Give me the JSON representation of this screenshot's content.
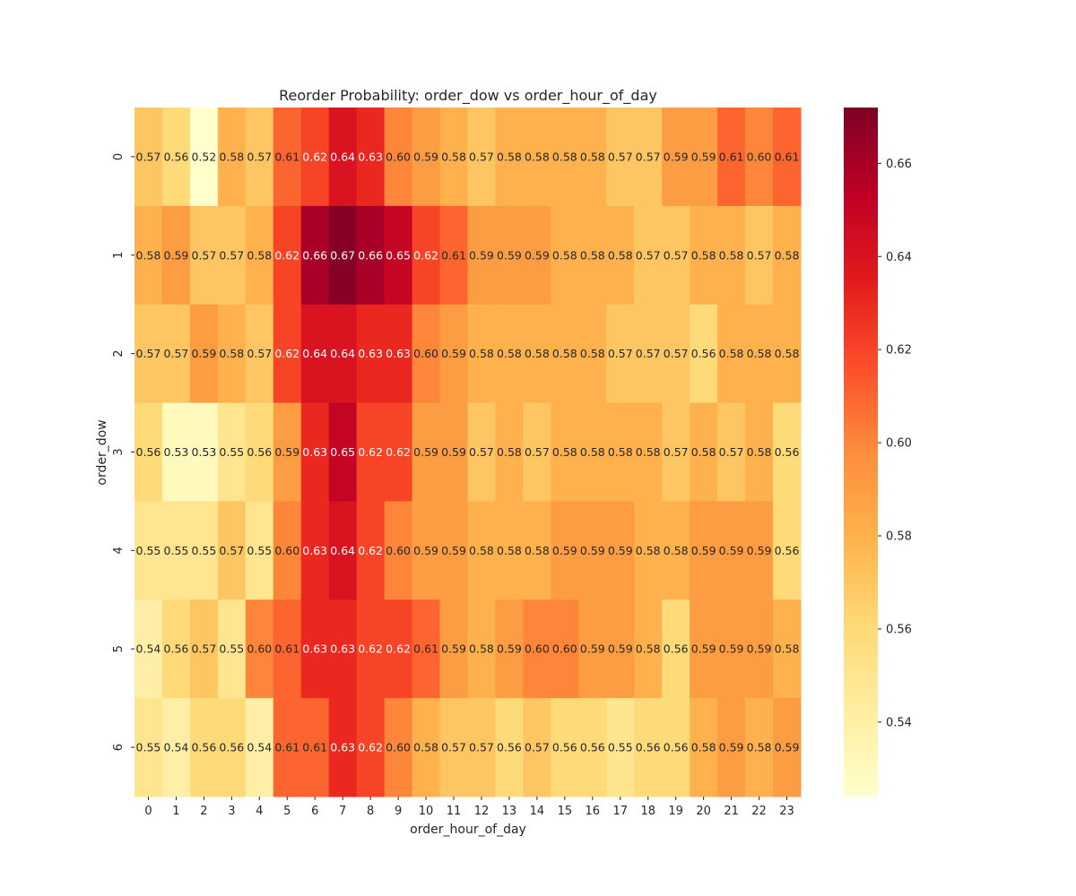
{
  "chart_data": {
    "type": "heatmap",
    "title": "Reorder Probability: order_dow vs order_hour_of_day",
    "xlabel": "order_hour_of_day",
    "ylabel": "order_dow",
    "x_categories": [
      "0",
      "1",
      "2",
      "3",
      "4",
      "5",
      "6",
      "7",
      "8",
      "9",
      "10",
      "11",
      "12",
      "13",
      "14",
      "15",
      "16",
      "17",
      "18",
      "19",
      "20",
      "21",
      "22",
      "23"
    ],
    "y_categories": [
      "0",
      "1",
      "2",
      "3",
      "4",
      "5",
      "6"
    ],
    "values": [
      [
        0.57,
        0.56,
        0.52,
        0.58,
        0.57,
        0.61,
        0.62,
        0.64,
        0.63,
        0.6,
        0.59,
        0.58,
        0.57,
        0.58,
        0.58,
        0.58,
        0.58,
        0.57,
        0.57,
        0.59,
        0.59,
        0.61,
        0.6,
        0.61
      ],
      [
        0.58,
        0.59,
        0.57,
        0.57,
        0.58,
        0.62,
        0.66,
        0.67,
        0.66,
        0.65,
        0.62,
        0.61,
        0.59,
        0.59,
        0.59,
        0.58,
        0.58,
        0.58,
        0.57,
        0.57,
        0.58,
        0.58,
        0.57,
        0.58
      ],
      [
        0.57,
        0.57,
        0.59,
        0.58,
        0.57,
        0.62,
        0.64,
        0.64,
        0.63,
        0.63,
        0.6,
        0.59,
        0.58,
        0.58,
        0.58,
        0.58,
        0.58,
        0.57,
        0.57,
        0.57,
        0.56,
        0.58,
        0.58,
        0.58
      ],
      [
        0.56,
        0.53,
        0.53,
        0.55,
        0.56,
        0.59,
        0.63,
        0.65,
        0.62,
        0.62,
        0.59,
        0.59,
        0.57,
        0.58,
        0.57,
        0.58,
        0.58,
        0.58,
        0.58,
        0.57,
        0.58,
        0.57,
        0.58,
        0.56
      ],
      [
        0.55,
        0.55,
        0.55,
        0.57,
        0.55,
        0.6,
        0.63,
        0.64,
        0.62,
        0.6,
        0.59,
        0.59,
        0.58,
        0.58,
        0.58,
        0.59,
        0.59,
        0.59,
        0.58,
        0.58,
        0.59,
        0.59,
        0.59,
        0.56
      ],
      [
        0.54,
        0.56,
        0.57,
        0.55,
        0.6,
        0.61,
        0.63,
        0.63,
        0.62,
        0.62,
        0.61,
        0.59,
        0.58,
        0.59,
        0.6,
        0.6,
        0.59,
        0.59,
        0.58,
        0.56,
        0.59,
        0.59,
        0.59,
        0.58
      ],
      [
        0.55,
        0.54,
        0.56,
        0.56,
        0.54,
        0.61,
        0.61,
        0.63,
        0.62,
        0.6,
        0.58,
        0.57,
        0.57,
        0.56,
        0.57,
        0.56,
        0.56,
        0.55,
        0.56,
        0.56,
        0.58,
        0.59,
        0.58,
        0.59
      ]
    ],
    "colormap": "YlOrRd",
    "color_range": [
      0.524,
      0.672
    ],
    "colorbar_ticks": [
      "0.54",
      "0.56",
      "0.58",
      "0.60",
      "0.62",
      "0.64",
      "0.66"
    ],
    "annotations": true,
    "grid": false
  }
}
